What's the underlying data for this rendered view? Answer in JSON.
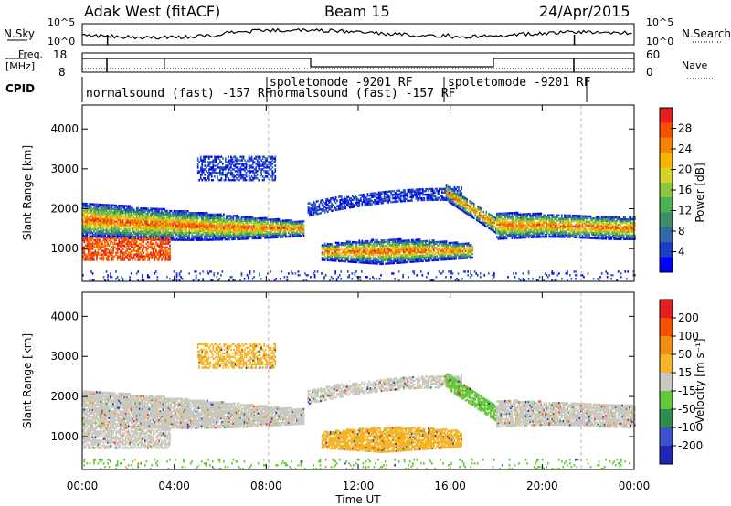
{
  "header": {
    "title": "Adak West (fitACF)",
    "beam": "Beam 15",
    "date": "24/Apr/2015"
  },
  "aux_panels": {
    "nsky_label": "N.Sky",
    "nsky_ticks": [
      "10^5",
      "10^0"
    ],
    "nsearch_label": "N.Search",
    "freq_label_top": "Freq.",
    "freq_label_unit": "[MHz]",
    "freq_ticks": [
      "18",
      "8"
    ],
    "nave_label": "Nave",
    "nave_ticks": [
      "60",
      "0"
    ],
    "cpid_label": "CPID",
    "cpid_segments": [
      "normalsound (fast) -157 RF",
      "spoletomode -9201 RF",
      "normalsound (fast) -157 RF",
      "spoletomode -9201 RF"
    ]
  },
  "chart_data": [
    {
      "type": "heatmap",
      "name": "power",
      "ylabel": "Slant Range [km]",
      "yticks": [
        "4000",
        "3000",
        "2000",
        "1000"
      ],
      "ylim": [
        180,
        4600
      ],
      "xlim": [
        0,
        24
      ],
      "colorbar": {
        "label": "Power [dB]",
        "ticks": [
          "28",
          "24",
          "20",
          "16",
          "12",
          "8",
          "4"
        ],
        "range": [
          0,
          32
        ],
        "colors": [
          "#0000ff",
          "#1e3cc8",
          "#2f6aa8",
          "#3c8c64",
          "#4caf50",
          "#8cc83c",
          "#d2d228",
          "#f5b400",
          "#f58200",
          "#f55000",
          "#e61e1e"
        ]
      }
    },
    {
      "type": "heatmap",
      "name": "velocity",
      "ylabel": "Slant Range [km]",
      "yticks": [
        "4000",
        "3000",
        "2000",
        "1000"
      ],
      "ylim": [
        180,
        4600
      ],
      "xlim": [
        0,
        24
      ],
      "xlabel": "Time UT",
      "xticks": [
        "00:00",
        "04:00",
        "08:00",
        "12:00",
        "16:00",
        "20:00",
        "00:00"
      ],
      "colorbar": {
        "label": "Velocity [m s⁻¹]",
        "ticks": [
          "200",
          "100",
          "50",
          "15",
          "-15",
          "-50",
          "-100",
          "-200"
        ],
        "colors": [
          "#1e28b4",
          "#3c50c8",
          "#2f8c50",
          "#64c83c",
          "#c8c8be",
          "#f5b428",
          "#f58c14",
          "#f55000",
          "#e61e1e"
        ]
      }
    }
  ]
}
